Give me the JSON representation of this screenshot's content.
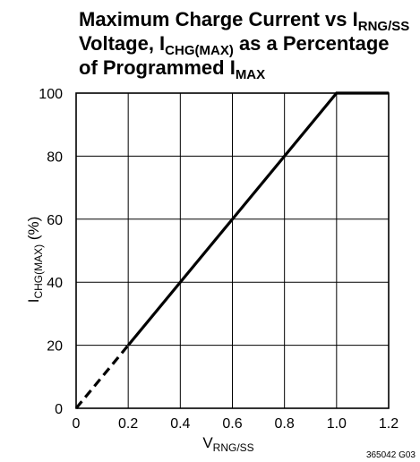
{
  "chart_data": {
    "type": "line",
    "title": {
      "line1": {
        "text": "Maximum Charge Current vs I",
        "sub": "RNG/SS"
      },
      "line2": {
        "pre": "Voltage, I",
        "sub": "CHG(MAX)",
        "post": " as a Percentage"
      },
      "line3": {
        "text": "of Programmed I",
        "sub": "MAX"
      }
    },
    "xlabel": {
      "base": "V",
      "sub": "RNG/SS"
    },
    "ylabel": {
      "base": "I",
      "sub": "CHG(MAX)",
      "suffix": " (%)"
    },
    "xlim": [
      0,
      1.2
    ],
    "ylim": [
      0,
      100
    ],
    "xticks": [
      "0",
      "0.2",
      "0.4",
      "0.6",
      "0.8",
      "1.0",
      "1.2"
    ],
    "yticks": [
      "0",
      "20",
      "40",
      "60",
      "80",
      "100"
    ],
    "grid": true,
    "series": [
      {
        "x": [
          0,
          0.2
        ],
        "y": [
          0,
          20
        ],
        "style": "dashed"
      },
      {
        "x": [
          0.2,
          1.0,
          1.2
        ],
        "y": [
          20,
          100,
          100
        ],
        "style": "solid"
      }
    ],
    "figure_code": "365042 G03"
  }
}
